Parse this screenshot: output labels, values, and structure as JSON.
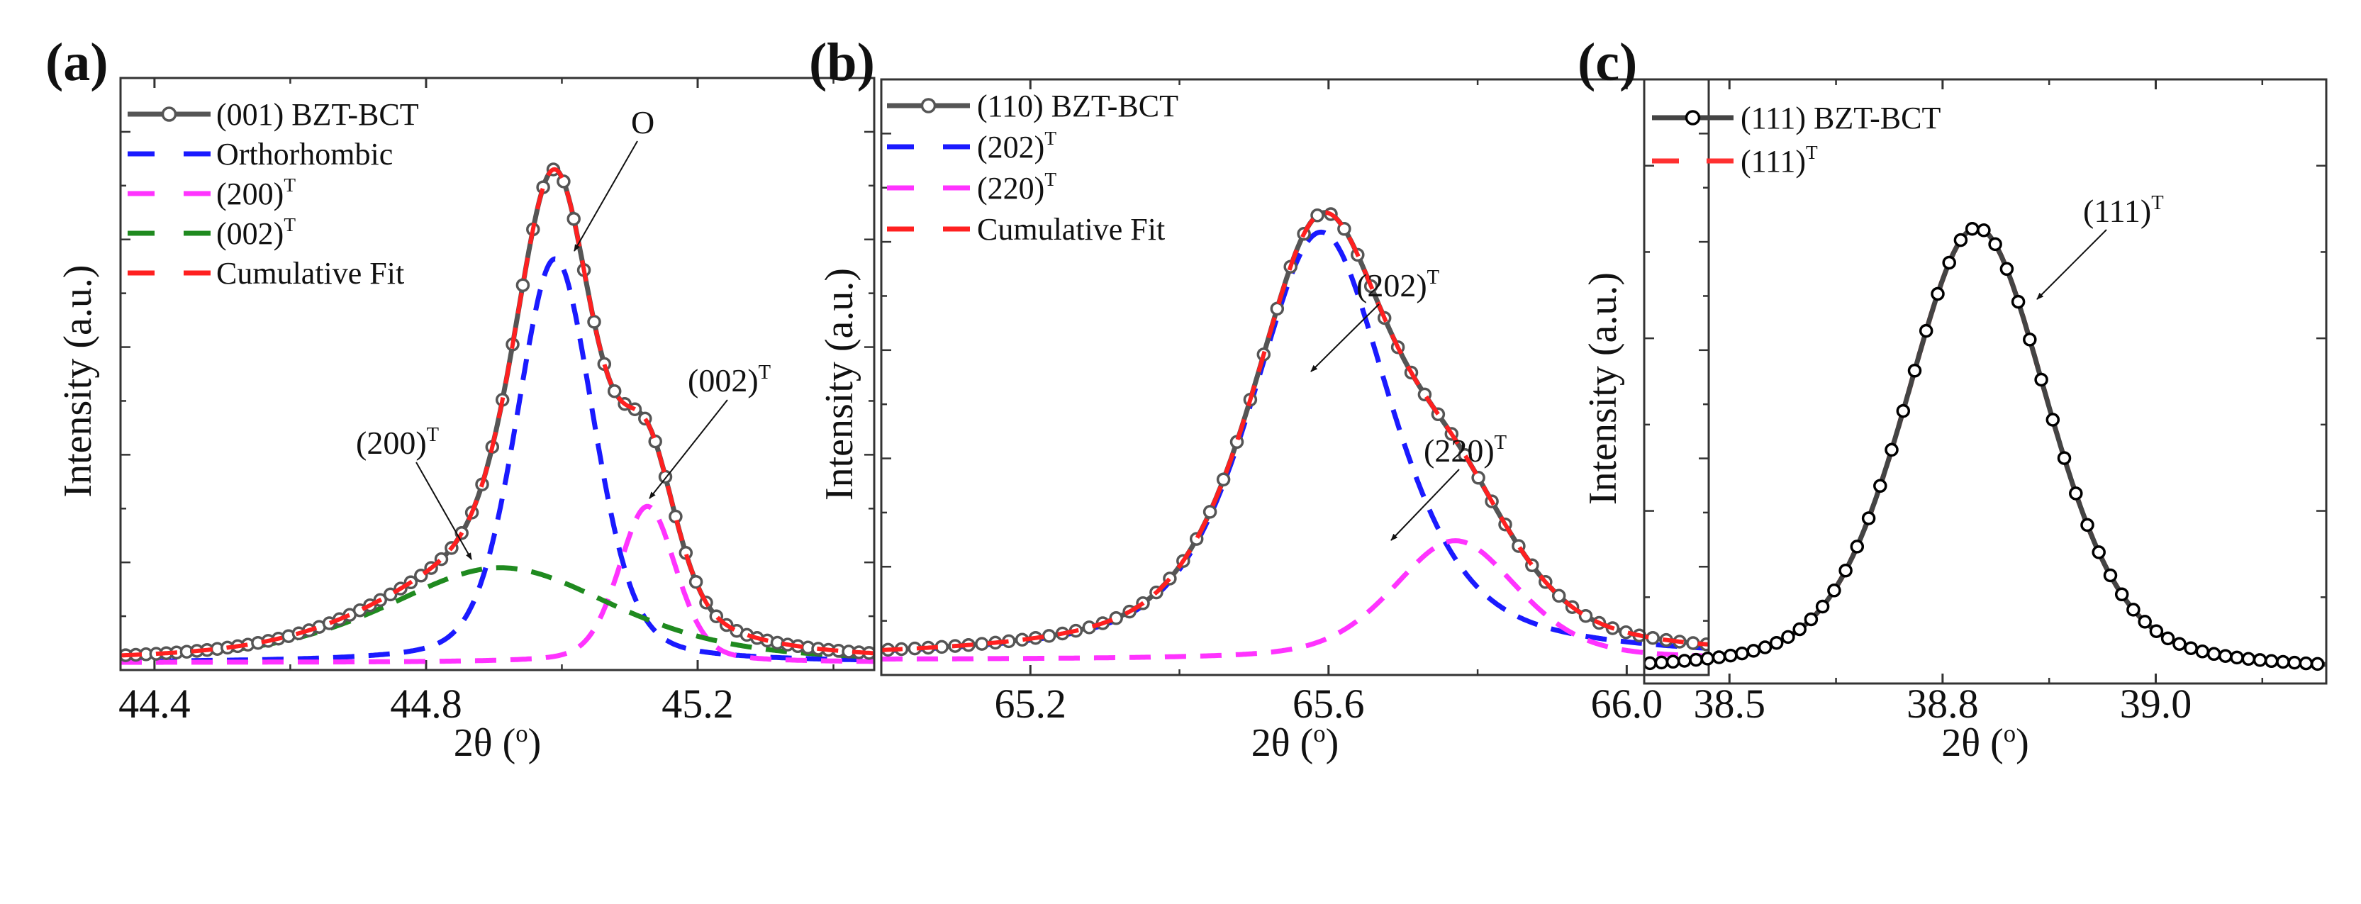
{
  "chart_data": [
    {
      "type": "line",
      "panel_label": "(a)",
      "xlabel": {
        "base": "2θ (",
        "sup": "o",
        "close": ")"
      },
      "ylabel": "Intensity (a.u.)",
      "xlim": [
        44.35,
        45.46
      ],
      "ylim": [
        0,
        5.5
      ],
      "xticks": [
        44.4,
        44.8,
        45.2
      ],
      "xtick_labels": [
        "44.4",
        "44.8",
        "45.2"
      ],
      "xminor": [
        44.6,
        45.0,
        45.4
      ],
      "ymajor_step": 1,
      "grid": false,
      "baseline": 0.07,
      "data_series": {
        "name": "(001) BZT-BCT",
        "step": 0.015,
        "line_color": "#555555",
        "marker_color": "#555555"
      },
      "peaks": [
        {
          "name": "Orthorhombic",
          "center": 44.99,
          "height": 3.75,
          "fwhm": 0.135,
          "eta": 0.3,
          "color": "#1a1aff"
        },
        {
          "name": "(200)T",
          "center": 45.126,
          "height": 1.45,
          "fwhm": 0.1,
          "eta": 0.3,
          "color": "#ff33ff"
        },
        {
          "name": "(002)T",
          "center": 44.91,
          "height": 0.88,
          "fwhm": 0.4,
          "eta": 0.5,
          "color": "#1f8a1f"
        }
      ],
      "cumulative_fit": {
        "show": true,
        "color": "#ff2020"
      },
      "legend_position": "top-left",
      "legend": [
        {
          "label": "(001) BZT-BCT",
          "sup": "",
          "style": "data",
          "color": "#555555"
        },
        {
          "label": "Orthorhombic",
          "sup": "",
          "style": "dash",
          "color": "#1a1aff"
        },
        {
          "label": "(200)",
          "sup": "T",
          "style": "dash",
          "color": "#ff33ff"
        },
        {
          "label": "(002)",
          "sup": "T",
          "style": "dash",
          "color": "#1f8a1f"
        },
        {
          "label": "Cumulative Fit",
          "sup": "",
          "style": "dash",
          "color": "#ff2020"
        }
      ],
      "annotations": [
        {
          "label": "O",
          "sup": ""
        },
        {
          "label": "(200)",
          "sup": "T"
        },
        {
          "label": "(002)",
          "sup": "T"
        }
      ]
    },
    {
      "type": "line",
      "panel_label": "(b)",
      "xlabel": {
        "base": "2θ (",
        "sup": "o",
        "close": ")"
      },
      "ylabel": "Intensity (a.u.)",
      "xlim": [
        65.0,
        66.11
      ],
      "ylim": [
        0,
        5.5
      ],
      "xticks": [
        65.2,
        65.6,
        66.0
      ],
      "xtick_labels": [
        "65.2",
        "65.6",
        "66.0"
      ],
      "xminor": [
        65.4,
        65.8
      ],
      "ymajor_step": 1,
      "grid": false,
      "baseline": 0.14,
      "data_series": {
        "name": "(110) BZT-BCT",
        "step": 0.018,
        "line_color": "#555555",
        "marker_color": "#555555"
      },
      "peaks": [
        {
          "name": "(202)T",
          "center": 65.59,
          "height": 3.95,
          "fwhm": 0.225,
          "eta": 0.6,
          "color": "#1a1aff"
        },
        {
          "name": "(220)T",
          "center": 65.77,
          "height": 1.1,
          "fwhm": 0.2,
          "eta": 0.4,
          "color": "#ff33ff"
        }
      ],
      "cumulative_fit": {
        "show": true,
        "color": "#ff2020"
      },
      "legend_position": "top-left",
      "legend": [
        {
          "label": "(110) BZT-BCT",
          "sup": "",
          "style": "data",
          "color": "#555555"
        },
        {
          "label": "(202)",
          "sup": "T",
          "style": "dash",
          "color": "#1a1aff"
        },
        {
          "label": "(220)",
          "sup": "T",
          "style": "dash",
          "color": "#ff33ff"
        },
        {
          "label": "Cumulative Fit",
          "sup": "",
          "style": "dash",
          "color": "#ff2020"
        }
      ],
      "annotations": [
        {
          "label": "(202)",
          "sup": "T"
        },
        {
          "label": "(220)",
          "sup": "T"
        }
      ]
    },
    {
      "type": "line",
      "panel_label": "(c)",
      "xlabel": {
        "base": "2θ (",
        "sup": "o",
        "close": ")"
      },
      "ylabel": "Intensity (a.u.)",
      "xlim": [
        38.4,
        39.2
      ],
      "ylim": [
        0,
        3.5
      ],
      "xticks": [
        38.5,
        38.75,
        39.0
      ],
      "xtick_labels": [
        "38.5",
        "38.8",
        "39.0"
      ],
      "xminor": [
        38.625,
        38.875,
        39.125
      ],
      "ymajor_step": 1,
      "grid": false,
      "baseline": 0.06,
      "data_series": {
        "name": "(111) BZT-BCT",
        "step": 0.0135,
        "line_color": "#444444",
        "marker_color": "#000000"
      },
      "peaks": [
        {
          "name": "(111)T",
          "center": 38.79,
          "height": 2.58,
          "fwhm": 0.2,
          "eta": 0.35,
          "color": "#ff3030"
        }
      ],
      "cumulative_fit": {
        "show": false,
        "color": "#ff3030"
      },
      "legend_position": "top-left",
      "legend": [
        {
          "label": "(111) BZT-BCT",
          "sup": "",
          "style": "data",
          "color": "#000000"
        },
        {
          "label": "(111)",
          "sup": "T",
          "style": "dash",
          "color": "#ff3030"
        }
      ],
      "annotations": [
        {
          "label": "(111)",
          "sup": "T"
        }
      ]
    }
  ]
}
